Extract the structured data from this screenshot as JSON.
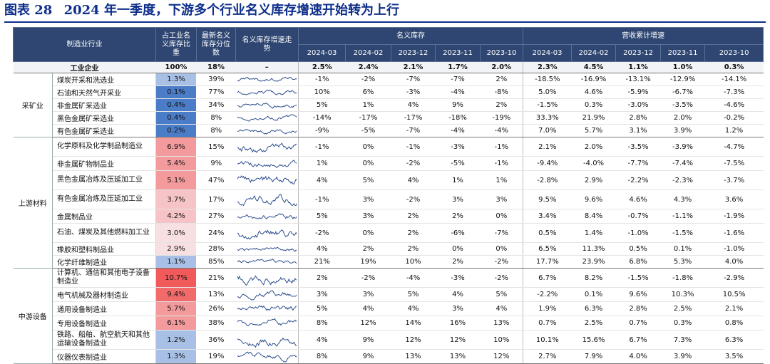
{
  "title": {
    "label": "图表 28",
    "text": "2024 年一季度，下游多个行业名义库存增速开始转为上行"
  },
  "header": {
    "industry": "制造业行业",
    "share": "占工业名义库存比重",
    "percentile": "最新名义库存分位数",
    "trend": "名义库存增速走势",
    "inventory_group": "名义库存",
    "revenue_group": "营收累计增速",
    "periods": [
      "2024-03",
      "2024-02",
      "2023-12",
      "2023-11",
      "2023-10"
    ]
  },
  "total": {
    "name": "工业企业",
    "share": "100%",
    "pct": "18%",
    "trend": "–",
    "inv": [
      "2.5%",
      "2.4%",
      "2.1%",
      "1.7%",
      "2.0%"
    ],
    "rev": [
      "2.3%",
      "4.5%",
      "1.1%",
      "1.0%",
      "0.3%"
    ]
  },
  "sections": [
    {
      "category": "采矿业",
      "rows": [
        {
          "name": "煤炭开采和洗选业",
          "share": "1.3%",
          "share_value": 1.3,
          "pct": "39%",
          "inv": [
            "-1%",
            "-2%",
            "-7%",
            "-7%",
            "2%"
          ],
          "rev": [
            "-18.5%",
            "-16.9%",
            "-13.1%",
            "-12.9%",
            "-14.1%"
          ]
        },
        {
          "name": "石油和天然气开采业",
          "share": "0.1%",
          "share_value": 0.1,
          "pct": "77%",
          "inv": [
            "10%",
            "6%",
            "-3%",
            "-4%",
            "-8%"
          ],
          "rev": [
            "5.0%",
            "4.6%",
            "-5.9%",
            "-6.7%",
            "-7.3%"
          ]
        },
        {
          "name": "非金属矿采选业",
          "share": "0.4%",
          "share_value": 0.4,
          "pct": "34%",
          "inv": [
            "5%",
            "1%",
            "4%",
            "9%",
            "2%"
          ],
          "rev": [
            "-1.5%",
            "0.3%",
            "-3.0%",
            "-3.5%",
            "-4.6%"
          ]
        },
        {
          "name": "黑色金属矿采选业",
          "share": "0.4%",
          "share_value": 0.4,
          "pct": "8%",
          "inv": [
            "-14%",
            "-17%",
            "-17%",
            "-18%",
            "-19%"
          ],
          "rev": [
            "33.3%",
            "21.9%",
            "2.8%",
            "2.0%",
            "-0.2%"
          ]
        },
        {
          "name": "有色金属矿采选业",
          "share": "0.2%",
          "share_value": 0.2,
          "pct": "8%",
          "inv": [
            "-9%",
            "-5%",
            "-7%",
            "-4%",
            "-4%"
          ],
          "rev": [
            "7.0%",
            "5.7%",
            "3.1%",
            "3.9%",
            "1.2%"
          ]
        }
      ]
    },
    {
      "category": "上游材料",
      "rows": [
        {
          "name": "化学原料及化学制品制造业",
          "share": "6.9%",
          "share_value": 6.9,
          "pct": "15%",
          "inv": [
            "-1%",
            "0%",
            "-1%",
            "-3%",
            "-1%"
          ],
          "rev": [
            "2.1%",
            "2.0%",
            "-3.5%",
            "-3.9%",
            "-4.7%"
          ]
        },
        {
          "name": "非金属矿物制品业",
          "share": "5.4%",
          "share_value": 5.4,
          "pct": "9%",
          "inv": [
            "1%",
            "0%",
            "-2%",
            "-5%",
            "-1%"
          ],
          "rev": [
            "-9.4%",
            "-4.0%",
            "-7.7%",
            "-7.4%",
            "-7.5%"
          ]
        },
        {
          "name": "黑色金属冶炼及压延加工业",
          "share": "5.1%",
          "share_value": 5.1,
          "pct": "47%",
          "inv": [
            "4%",
            "5%",
            "4%",
            "1%",
            "1%"
          ],
          "rev": [
            "-2.8%",
            "2.9%",
            "-2.2%",
            "-2.3%",
            "-3.7%"
          ]
        },
        {
          "name": "有色金属冶炼及压延加工业",
          "share": "3.7%",
          "share_value": 3.7,
          "pct": "17%",
          "inv": [
            "-1%",
            "3%",
            "-2%",
            "3%",
            "3%"
          ],
          "rev": [
            "9.5%",
            "9.6%",
            "4.6%",
            "4.3%",
            "3.6%"
          ]
        },
        {
          "name": "金属制品业",
          "share": "4.2%",
          "share_value": 4.2,
          "pct": "27%",
          "inv": [
            "5%",
            "3%",
            "2%",
            "2%",
            "0%"
          ],
          "rev": [
            "3.4%",
            "8.4%",
            "-0.7%",
            "-1.1%",
            "-1.9%"
          ]
        },
        {
          "name": "石油、煤炭及其他燃料加工业",
          "share": "3.0%",
          "share_value": 3.0,
          "pct": "24%",
          "inv": [
            "-2%",
            "0%",
            "2%",
            "-6%",
            "-7%"
          ],
          "rev": [
            "0.5%",
            "1.4%",
            "-1.0%",
            "-1.5%",
            "-1.6%"
          ]
        },
        {
          "name": "橡胶和塑料制品业",
          "share": "2.9%",
          "share_value": 2.9,
          "pct": "28%",
          "inv": [
            "4%",
            "2%",
            "2%",
            "0%",
            "0%"
          ],
          "rev": [
            "6.5%",
            "11.3%",
            "0.5%",
            "0.1%",
            "-1.0%"
          ]
        },
        {
          "name": "化学纤维制造业",
          "share": "1.1%",
          "share_value": 1.1,
          "pct": "85%",
          "inv": [
            "21%",
            "19%",
            "10%",
            "2%",
            "-2%"
          ],
          "rev": [
            "17.7%",
            "23.9%",
            "6.8%",
            "5.3%",
            "4.0%"
          ]
        }
      ]
    },
    {
      "category": "中游设备",
      "rows": [
        {
          "name": "计算机、通信和其他电子设备制造业",
          "share": "10.7%",
          "share_value": 10.7,
          "pct": "21%",
          "inv": [
            "2%",
            "-2%",
            "-4%",
            "-3%",
            "-2%"
          ],
          "rev": [
            "6.7%",
            "8.2%",
            "-1.5%",
            "-1.8%",
            "-2.9%"
          ]
        },
        {
          "name": "电气机械及器材制造业",
          "share": "9.4%",
          "share_value": 9.4,
          "pct": "13%",
          "inv": [
            "3%",
            "3%",
            "5%",
            "4%",
            "5%"
          ],
          "rev": [
            "-2.2%",
            "0.1%",
            "9.6%",
            "10.3%",
            "10.5%"
          ]
        },
        {
          "name": "通用设备制造业",
          "share": "5.7%",
          "share_value": 5.7,
          "pct": "26%",
          "inv": [
            "5%",
            "4%",
            "4%",
            "3%",
            "4%"
          ],
          "rev": [
            "1.9%",
            "6.3%",
            "2.8%",
            "2.5%",
            "2.1%"
          ]
        },
        {
          "name": "专用设备制造业",
          "share": "6.1%",
          "share_value": 6.1,
          "pct": "38%",
          "inv": [
            "8%",
            "12%",
            "14%",
            "16%",
            "13%"
          ],
          "rev": [
            "0.7%",
            "2.5%",
            "0.7%",
            "0.3%",
            "0.8%"
          ]
        },
        {
          "name": "铁路、船舶、航空航天和其他运输设备制造业",
          "share": "1.2%",
          "share_value": 1.2,
          "pct": "36%",
          "inv": [
            "4%",
            "9%",
            "12%",
            "12%",
            "10%"
          ],
          "rev": [
            "10.1%",
            "15.6%",
            "6.7%",
            "7.3%",
            "6.3%"
          ]
        },
        {
          "name": "仪器仪表制造业",
          "share": "1.3%",
          "share_value": 1.3,
          "pct": "19%",
          "inv": [
            "8%",
            "9%",
            "13%",
            "13%",
            "12%"
          ],
          "rev": [
            "2.7%",
            "7.9%",
            "4.0%",
            "3.9%",
            "3.5%"
          ]
        }
      ]
    }
  ],
  "colors": {
    "header_bg": "#2e4671",
    "title": "#0d2e8a",
    "low_share": "#4a7cc7",
    "high_share": "#f05a5a"
  }
}
